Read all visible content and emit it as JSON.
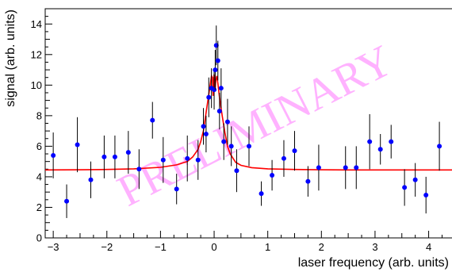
{
  "chart_data": {
    "type": "scatter",
    "title": "",
    "xlabel": "laser frequency (arb. units)",
    "ylabel": "signal (arb. units)",
    "xlim": [
      -3.15,
      4.45
    ],
    "ylim": [
      0,
      15
    ],
    "x_ticks": [
      -3,
      -2,
      -1,
      0,
      1,
      2,
      3,
      4
    ],
    "y_ticks": [
      0,
      2,
      4,
      6,
      8,
      10,
      12,
      14
    ],
    "grid": false,
    "watermark": "PRELIMINARY",
    "colors": {
      "points": "#0000ff",
      "fit": "#ff0000",
      "errorbars": "#000000",
      "watermark": "#ff55ff"
    },
    "series": [
      {
        "kind": "data-with-errors",
        "points": [
          {
            "x": -3.0,
            "y": 5.4,
            "err": 1.5
          },
          {
            "x": -2.75,
            "y": 2.4,
            "err": 1.1
          },
          {
            "x": -2.55,
            "y": 6.1,
            "err": 1.8
          },
          {
            "x": -2.3,
            "y": 3.8,
            "err": 1.2
          },
          {
            "x": -2.05,
            "y": 5.3,
            "err": 1.4
          },
          {
            "x": -1.85,
            "y": 5.3,
            "err": 1.4
          },
          {
            "x": -1.6,
            "y": 5.6,
            "err": 1.4
          },
          {
            "x": -1.4,
            "y": 4.5,
            "err": 1.3
          },
          {
            "x": -1.15,
            "y": 7.7,
            "err": 1.2
          },
          {
            "x": -0.95,
            "y": 5.1,
            "err": 1.5
          },
          {
            "x": -0.7,
            "y": 3.2,
            "err": 1.0
          },
          {
            "x": -0.5,
            "y": 5.2,
            "err": 1.5
          },
          {
            "x": -0.3,
            "y": 5.1,
            "err": 1.3
          },
          {
            "x": -0.2,
            "y": 7.3,
            "err": 1.2
          },
          {
            "x": -0.15,
            "y": 6.8,
            "err": 1.2
          },
          {
            "x": -0.1,
            "y": 9.2,
            "err": 1.3
          },
          {
            "x": -0.05,
            "y": 9.8,
            "err": 1.3
          },
          {
            "x": 0.0,
            "y": 9.7,
            "err": 1.3
          },
          {
            "x": 0.02,
            "y": 11.0,
            "err": 1.3
          },
          {
            "x": 0.04,
            "y": 12.6,
            "err": 1.3
          },
          {
            "x": 0.07,
            "y": 11.6,
            "err": 1.3
          },
          {
            "x": 0.1,
            "y": 8.3,
            "err": 1.2
          },
          {
            "x": 0.13,
            "y": 9.8,
            "err": 1.3
          },
          {
            "x": 0.18,
            "y": 6.3,
            "err": 1.2
          },
          {
            "x": 0.25,
            "y": 7.6,
            "err": 1.5
          },
          {
            "x": 0.32,
            "y": 6.0,
            "err": 1.3
          },
          {
            "x": 0.42,
            "y": 4.4,
            "err": 1.4
          },
          {
            "x": 0.65,
            "y": 6.0,
            "err": 1.3
          },
          {
            "x": 0.88,
            "y": 2.9,
            "err": 0.8
          },
          {
            "x": 1.08,
            "y": 4.1,
            "err": 1.0
          },
          {
            "x": 1.3,
            "y": 5.2,
            "err": 1.2
          },
          {
            "x": 1.5,
            "y": 5.7,
            "err": 1.3
          },
          {
            "x": 1.75,
            "y": 3.7,
            "err": 1.0
          },
          {
            "x": 1.95,
            "y": 4.6,
            "err": 1.5
          },
          {
            "x": 2.45,
            "y": 4.6,
            "err": 1.4
          },
          {
            "x": 2.65,
            "y": 4.6,
            "err": 1.4
          },
          {
            "x": 2.9,
            "y": 6.3,
            "err": 1.8
          },
          {
            "x": 3.1,
            "y": 5.8,
            "err": 1.0
          },
          {
            "x": 3.3,
            "y": 6.3,
            "err": 1.1
          },
          {
            "x": 3.55,
            "y": 3.3,
            "err": 1.2
          },
          {
            "x": 3.75,
            "y": 3.8,
            "err": 1.1
          },
          {
            "x": 3.95,
            "y": 2.8,
            "err": 1.2
          },
          {
            "x": 4.2,
            "y": 6.0,
            "err": 1.6
          }
        ]
      },
      {
        "kind": "fit",
        "x": [
          -3.15,
          -2.5,
          -2.0,
          -1.5,
          -1.0,
          -0.7,
          -0.5,
          -0.4,
          -0.3,
          -0.25,
          -0.2,
          -0.15,
          -0.1,
          -0.07,
          -0.05,
          -0.03,
          -0.02,
          0.0,
          0.02,
          0.03,
          0.05,
          0.07,
          0.1,
          0.15,
          0.2,
          0.25,
          0.3,
          0.4,
          0.5,
          0.7,
          1.0,
          1.5,
          2.0,
          2.5,
          3.0,
          3.5,
          4.0,
          4.45
        ],
        "y": [
          4.45,
          4.46,
          4.48,
          4.52,
          4.62,
          4.78,
          5.0,
          5.3,
          5.8,
          6.3,
          7.0,
          8.2,
          9.4,
          10.1,
          10.6,
          10.5,
          9.3,
          10.7,
          9.8,
          10.3,
          10.6,
          10.1,
          9.2,
          8.0,
          6.9,
          6.0,
          5.5,
          4.95,
          4.75,
          4.6,
          4.52,
          4.48,
          4.46,
          4.45,
          4.45,
          4.45,
          4.45,
          4.45
        ]
      }
    ]
  }
}
